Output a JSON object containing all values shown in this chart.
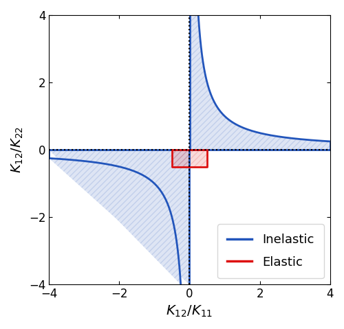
{
  "xlim": [
    -4,
    4
  ],
  "ylim": [
    -4,
    4
  ],
  "xlabel": "$K_{12}/K_{11}$",
  "ylabel": "$K_{12}/K_{22}$",
  "dotted_color": "black",
  "blue_color": "#2255BB",
  "blue_hatch": "////",
  "blue_fill_alpha": 0.15,
  "blue_linewidth": 2.0,
  "red_color": "#DD1111",
  "red_hatch": "////",
  "red_fill_alpha": 0.0,
  "red_linewidth": 2.0,
  "elastic_x1": -0.5,
  "elastic_x2": 0.5,
  "elastic_y1": -0.5,
  "elastic_y2": 0.0,
  "legend_inelastic": "Inelastic",
  "legend_elastic": "Elastic",
  "tick_vals": [
    -4,
    -2,
    0,
    2,
    4
  ],
  "figsize": [
    5.0,
    4.79
  ],
  "dpi": 100
}
